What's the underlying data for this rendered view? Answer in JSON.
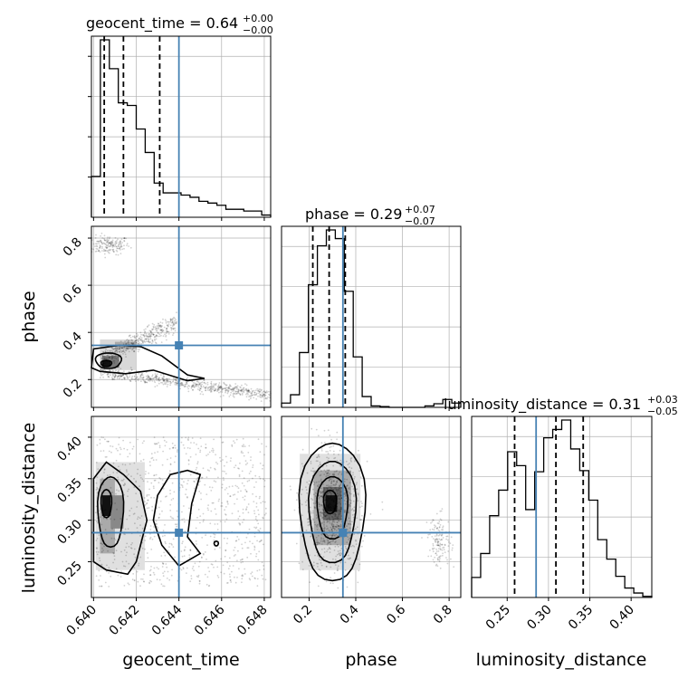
{
  "chart_data": {
    "type": "corner",
    "parameters": [
      "geocent_time",
      "phase",
      "luminosity_distance"
    ],
    "truth": {
      "geocent_time": 0.644,
      "phase": 0.345,
      "luminosity_distance": 0.285
    },
    "colors": {
      "truth": "#4682b4",
      "hist": "#000000",
      "grid": "#b0b0b0"
    },
    "titles": [
      {
        "param": "geocent_time",
        "text": "geocent_time = 0.64",
        "sup": "+0.00",
        "sub": "−0.00"
      },
      {
        "param": "phase",
        "text": "phase = 0.29",
        "sup": "+0.07",
        "sub": "−0.07"
      },
      {
        "param": "luminosity_distance",
        "text": "luminosity_distance = 0.31",
        "sup": "+0.03",
        "sub": "−0.05"
      }
    ],
    "axis_labels": {
      "geocent_time": "geocent_time",
      "phase": "phase",
      "luminosity_distance": "luminosity_distance"
    },
    "ranges": {
      "geocent_time": [
        0.6399,
        0.6483
      ],
      "phase": [
        0.082,
        0.85
      ],
      "luminosity_distance": [
        0.207,
        0.425
      ]
    },
    "ticks": {
      "geocent_time": [
        "0.640",
        "0.642",
        "0.644",
        "0.646",
        "0.648"
      ],
      "phase": [
        "0.2",
        "0.4",
        "0.6",
        "0.8"
      ],
      "luminosity_distance": [
        "0.25",
        "0.30",
        "0.35",
        "0.40"
      ]
    },
    "quantiles": {
      "geocent_time": [
        0.6405,
        0.6414,
        0.6431
      ],
      "phase": [
        0.216,
        0.286,
        0.355
      ],
      "luminosity_distance": [
        0.259,
        0.309,
        0.342
      ]
    },
    "hist_geocent_time": {
      "bins": [
        0.6399,
        0.64032,
        0.64074,
        0.64116,
        0.64158,
        0.642,
        0.64242,
        0.64284,
        0.64326,
        0.64368,
        0.6441,
        0.64452,
        0.64494,
        0.64536,
        0.64578,
        0.6462,
        0.64662,
        0.64704,
        0.64746,
        0.64788,
        0.6483
      ],
      "counts": [
        92,
        400,
        335,
        258,
        252,
        199,
        146,
        77,
        55,
        55,
        50,
        45,
        36,
        32,
        27,
        18,
        18,
        14,
        14,
        5
      ]
    },
    "hist_phase": {
      "bins": [
        0.082,
        0.1204,
        0.1588,
        0.1972,
        0.2356,
        0.274,
        0.3124,
        0.3508,
        0.3892,
        0.4276,
        0.466,
        0.5044,
        0.5428,
        0.5812,
        0.6196,
        0.658,
        0.6964,
        0.7348,
        0.7732,
        0.8116,
        0.85
      ],
      "counts": [
        12,
        35,
        152,
        340,
        448,
        492,
        468,
        322,
        140,
        30,
        4,
        2,
        0,
        0,
        0,
        0,
        4,
        10,
        22,
        12
      ]
    },
    "hist_luminosity_distance": {
      "bins": [
        0.207,
        0.2179,
        0.2288,
        0.2397,
        0.2506,
        0.2615,
        0.2724,
        0.2833,
        0.2942,
        0.3051,
        0.316,
        0.3269,
        0.3378,
        0.3487,
        0.3596,
        0.3705,
        0.3814,
        0.3923,
        0.4032,
        0.4141,
        0.425
      ],
      "counts": [
        36,
        79,
        147,
        193,
        262,
        237,
        158,
        226,
        287,
        302,
        319,
        267,
        228,
        175,
        104,
        69,
        38,
        17,
        8,
        2
      ]
    }
  }
}
